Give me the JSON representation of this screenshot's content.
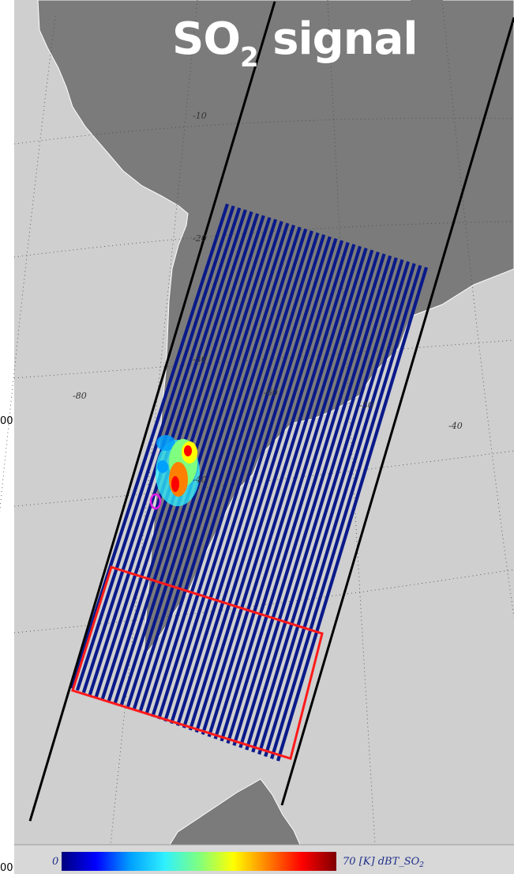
{
  "title": {
    "main": "SO",
    "sub": "2",
    "rest": " signal"
  },
  "colorbar": {
    "min_label": "0",
    "max_label": "70",
    "unit_label": "[K]",
    "variable": "dBT_SO",
    "variable_sub": "2",
    "stops": [
      "#00007f",
      "#0000ff",
      "#00a0ff",
      "#2ff0ff",
      "#7fff7f",
      "#ffff00",
      "#ff8000",
      "#ff0000",
      "#7f0000"
    ]
  },
  "graticule_labels": {
    "lat": [
      "-10",
      "-20",
      "-30",
      "-40"
    ],
    "lon": [
      "-80",
      "-60",
      "-50",
      "-40"
    ]
  },
  "edge_labels": {
    "left_mid": "00",
    "left_bottom": "00"
  },
  "colors": {
    "ocean": "#cfcfcf",
    "land": "#7b7b7b",
    "swath": "#0a1a8a",
    "box": "#ff1a1a",
    "volcano_marker": "#e31ae3"
  }
}
